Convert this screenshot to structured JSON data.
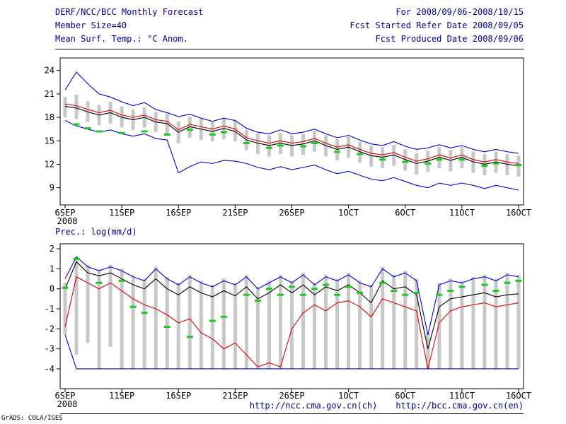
{
  "header": {
    "left": [
      "DERF/NCC/BCC Monthly Forecast",
      "Member Size=40",
      "Mean Surf. Temp.: °C Anom."
    ],
    "right": [
      "For 2008/09/06-2008/10/15",
      "Fcst Started Refer Date 2008/09/05",
      "Fcst Produced Date 2008/09/06"
    ]
  },
  "precip_label": "Prec.: log(mm/d)",
  "footer": {
    "url_ch": "http://ncc.cma.gov.cn(ch)",
    "url_en": "http://bcc.cma.gov.cn(en)",
    "credit": "GrADS: COLA/IGES"
  },
  "colors": {
    "line_blue": "#0000cd",
    "line_red": "#d80000",
    "line_black": "#000000",
    "green_dash": "#1fc81f",
    "bar_gray": "#c8c8c8",
    "text_navy": "#00008b"
  },
  "chart_data": [
    {
      "type": "line",
      "panel": "surface-temperature",
      "title": "Mean Surf. Temp.: °C Anom.",
      "ylim": [
        6.8,
        25.6
      ],
      "yticks": [
        9,
        12,
        15,
        18,
        21,
        24
      ],
      "x_tick_labels": [
        "6SEP",
        "11SEP",
        "16SEP",
        "21SEP",
        "26SEP",
        "1OCT",
        "6OCT",
        "11OCT",
        "16OCT"
      ],
      "x_tick_positions": [
        0,
        5,
        10,
        15,
        20,
        25,
        30,
        35,
        40
      ],
      "x_sub_label": "2008",
      "n": 41,
      "grid": false,
      "bars": [
        [
          18.0,
          20.6
        ],
        [
          17.8,
          20.9
        ],
        [
          17.4,
          20.1
        ],
        [
          17.0,
          19.6
        ],
        [
          17.2,
          20.0
        ],
        [
          16.7,
          19.4
        ],
        [
          16.4,
          19.0
        ],
        [
          16.7,
          19.3
        ],
        [
          16.1,
          18.7
        ],
        [
          15.9,
          18.5
        ],
        [
          14.7,
          17.5
        ],
        [
          15.4,
          18.1
        ],
        [
          15.1,
          17.8
        ],
        [
          14.9,
          17.5
        ],
        [
          15.2,
          17.9
        ],
        [
          14.9,
          17.6
        ],
        [
          13.8,
          16.4
        ],
        [
          13.3,
          16.0
        ],
        [
          13.0,
          15.7
        ],
        [
          13.3,
          16.0
        ],
        [
          13.0,
          15.7
        ],
        [
          13.2,
          15.9
        ],
        [
          13.6,
          16.3
        ],
        [
          13.0,
          15.7
        ],
        [
          12.5,
          15.2
        ],
        [
          12.8,
          15.5
        ],
        [
          12.2,
          14.9
        ],
        [
          11.7,
          14.4
        ],
        [
          11.5,
          14.2
        ],
        [
          11.8,
          14.5
        ],
        [
          11.2,
          13.9
        ],
        [
          10.7,
          13.4
        ],
        [
          11.0,
          13.7
        ],
        [
          11.5,
          14.2
        ],
        [
          11.1,
          13.8
        ],
        [
          11.5,
          14.2
        ],
        [
          10.9,
          13.6
        ],
        [
          10.6,
          13.3
        ],
        [
          10.9,
          13.6
        ],
        [
          10.6,
          13.3
        ],
        [
          10.4,
          13.1
        ]
      ],
      "series": [
        {
          "name": "ensemble-max-line",
          "color": "blue",
          "values": [
            21.5,
            23.8,
            22.3,
            21.0,
            20.6,
            20.0,
            19.5,
            19.9,
            19.0,
            18.6,
            18.1,
            18.4,
            17.9,
            17.5,
            17.9,
            17.6,
            16.6,
            16.1,
            15.9,
            16.4,
            15.9,
            16.1,
            16.5,
            15.9,
            15.4,
            15.7,
            15.1,
            14.6,
            14.4,
            14.9,
            14.3,
            13.9,
            14.1,
            14.5,
            14.1,
            14.4,
            13.9,
            13.6,
            13.9,
            13.6,
            13.4
          ]
        },
        {
          "name": "ensemble-min-line",
          "color": "blue",
          "values": [
            17.6,
            16.9,
            16.5,
            16.1,
            16.4,
            15.9,
            15.6,
            15.9,
            15.3,
            15.1,
            10.9,
            11.7,
            12.3,
            12.1,
            12.5,
            12.4,
            12.1,
            11.6,
            11.3,
            11.7,
            11.3,
            11.6,
            11.9,
            11.3,
            10.8,
            11.1,
            10.6,
            10.1,
            9.9,
            10.3,
            9.8,
            9.3,
            9.0,
            9.6,
            9.3,
            9.6,
            9.3,
            8.9,
            9.3,
            9.0,
            8.7
          ]
        },
        {
          "name": "control-line",
          "color": "red",
          "values": [
            19.7,
            19.5,
            19.0,
            18.6,
            18.9,
            18.3,
            18.0,
            18.3,
            17.7,
            17.5,
            16.4,
            17.1,
            16.8,
            16.5,
            16.9,
            16.5,
            15.4,
            15.0,
            14.7,
            15.0,
            14.7,
            14.9,
            15.3,
            14.7,
            14.2,
            14.5,
            13.9,
            13.4,
            13.2,
            13.5,
            12.9,
            12.4,
            12.7,
            13.2,
            12.8,
            13.2,
            12.6,
            12.3,
            12.6,
            12.3,
            12.1
          ]
        },
        {
          "name": "ensemble-mean-line",
          "color": "black",
          "values": [
            19.4,
            19.2,
            18.7,
            18.3,
            18.6,
            18.0,
            17.7,
            18.0,
            17.4,
            17.2,
            16.1,
            16.8,
            16.5,
            16.2,
            16.6,
            16.2,
            15.1,
            14.7,
            14.4,
            14.7,
            14.4,
            14.6,
            15.0,
            14.4,
            13.9,
            14.2,
            13.6,
            13.1,
            12.9,
            13.2,
            12.6,
            12.1,
            12.4,
            12.9,
            12.5,
            12.9,
            12.3,
            12.0,
            12.3,
            12.0,
            11.8
          ]
        }
      ],
      "greens": [
        null,
        17.1,
        16.6,
        16.2,
        null,
        16.0,
        null,
        16.2,
        null,
        15.8,
        null,
        16.4,
        null,
        15.8,
        16.1,
        null,
        14.7,
        null,
        14.1,
        14.4,
        null,
        14.3,
        14.7,
        null,
        13.6,
        null,
        13.3,
        null,
        12.6,
        null,
        12.3,
        null,
        12.1,
        12.6,
        null,
        12.6,
        null,
        11.8,
        12.1,
        null,
        11.9
      ]
    },
    {
      "type": "line",
      "panel": "precipitation",
      "title": "Prec.: log(mm/d)",
      "ylim": [
        -4.99,
        2.25
      ],
      "yticks": [
        -4,
        -3,
        -2,
        -1,
        0,
        1,
        2
      ],
      "x_tick_labels": [
        "6SEP",
        "11SEP",
        "16SEP",
        "21SEP",
        "26SEP",
        "1OCT",
        "6OCT",
        "11OCT",
        "16OCT"
      ],
      "x_tick_positions": [
        0,
        5,
        10,
        15,
        20,
        25,
        30,
        35,
        40
      ],
      "x_sub_label": "2008",
      "n": 41,
      "grid": false,
      "bars": [
        [
          -2.3,
          0.3
        ],
        [
          -3.3,
          1.6
        ],
        [
          -2.7,
          1.2
        ],
        [
          -4,
          1.0
        ],
        [
          -2.9,
          1.2
        ],
        [
          -4,
          1.0
        ],
        [
          -4,
          0.7
        ],
        [
          -4,
          0.5
        ],
        [
          -4,
          1.1
        ],
        [
          -4,
          0.6
        ],
        [
          -4,
          0.3
        ],
        [
          -4,
          0.7
        ],
        [
          -4,
          0.4
        ],
        [
          -4,
          0.2
        ],
        [
          -4,
          0.5
        ],
        [
          -4,
          0.3
        ],
        [
          -4,
          0.7
        ],
        [
          -4,
          0.1
        ],
        [
          -4,
          0.4
        ],
        [
          -4,
          0.7
        ],
        [
          -4,
          0.4
        ],
        [
          -4,
          0.8
        ],
        [
          -4,
          0.3
        ],
        [
          -4,
          0.7
        ],
        [
          -4,
          0.5
        ],
        [
          -4,
          0.8
        ],
        [
          -4,
          0.4
        ],
        [
          -4,
          0.2
        ],
        [
          -4,
          1.1
        ],
        [
          -4,
          0.7
        ],
        [
          -4,
          0.9
        ],
        [
          -4,
          0.5
        ],
        [
          -4,
          -2.2
        ],
        [
          -4,
          0.3
        ],
        [
          -4,
          0.5
        ],
        [
          -4,
          0.4
        ],
        [
          -4,
          0.6
        ],
        [
          -4,
          0.7
        ],
        [
          -4,
          0.5
        ],
        [
          -4,
          0.8
        ],
        [
          -4,
          0.7
        ]
      ],
      "series": [
        {
          "name": "ensemble-max-line",
          "color": "blue",
          "values": [
            0.5,
            1.6,
            1.1,
            0.9,
            1.1,
            0.9,
            0.6,
            0.4,
            1.0,
            0.5,
            0.2,
            0.6,
            0.3,
            0.1,
            0.4,
            0.2,
            0.6,
            0.0,
            0.3,
            0.6,
            0.3,
            0.7,
            0.2,
            0.6,
            0.4,
            0.7,
            0.3,
            0.1,
            1.0,
            0.6,
            0.8,
            0.4,
            -2.3,
            0.2,
            0.4,
            0.3,
            0.5,
            0.6,
            0.4,
            0.7,
            0.6
          ]
        },
        {
          "name": "ensemble-min-line",
          "color": "blue",
          "values": [
            -2.3,
            -4,
            -4,
            -4,
            -4,
            -4,
            -4,
            -4,
            -4,
            -4,
            -4,
            -4,
            -4,
            -4,
            -4,
            -4,
            -4,
            -4,
            -4,
            -4,
            -4,
            -4,
            -4,
            -4,
            -4,
            -4,
            -4,
            -4,
            -4,
            -4,
            -4,
            -4,
            -4,
            -4,
            -4,
            -4,
            -4,
            -4,
            -4,
            -4,
            -4
          ]
        },
        {
          "name": "control-line",
          "color": "red",
          "values": [
            -1.9,
            0.6,
            0.3,
            0.0,
            0.3,
            -0.1,
            -0.5,
            -0.8,
            -1.0,
            -1.3,
            -1.7,
            -1.5,
            -2.2,
            -2.5,
            -3.0,
            -2.7,
            -3.3,
            -3.9,
            -3.7,
            -3.9,
            -2.0,
            -1.2,
            -0.8,
            -1.1,
            -0.7,
            -0.6,
            -0.9,
            -1.4,
            -0.5,
            -0.7,
            -0.9,
            -1.1,
            -4.0,
            -1.7,
            -1.1,
            -0.9,
            -0.8,
            -0.7,
            -0.9,
            -0.8,
            -0.7
          ]
        },
        {
          "name": "ensemble-mean-line",
          "color": "black",
          "values": [
            0.0,
            1.35,
            0.8,
            0.65,
            0.8,
            0.5,
            0.2,
            0.0,
            0.5,
            0.0,
            -0.3,
            0.1,
            -0.2,
            -0.4,
            -0.1,
            -0.35,
            0.1,
            -0.5,
            -0.2,
            0.2,
            -0.2,
            0.2,
            -0.3,
            0.1,
            -0.1,
            0.2,
            -0.2,
            -0.7,
            0.4,
            0.0,
            0.1,
            -0.3,
            -3.0,
            -0.9,
            -0.5,
            -0.4,
            -0.3,
            -0.2,
            -0.4,
            -0.3,
            -0.25
          ]
        }
      ],
      "greens": [
        0.05,
        1.5,
        null,
        0.3,
        null,
        0.4,
        -0.9,
        -1.2,
        null,
        -1.9,
        null,
        -2.4,
        null,
        -1.6,
        -1.4,
        null,
        -0.3,
        -0.6,
        0.0,
        -0.3,
        0.1,
        -0.3,
        0.0,
        0.2,
        -0.3,
        0.1,
        -0.2,
        null,
        0.3,
        -0.1,
        -0.3,
        -0.2,
        null,
        -0.3,
        -0.1,
        0.1,
        null,
        0.2,
        -0.1,
        0.3,
        0.4
      ]
    }
  ]
}
